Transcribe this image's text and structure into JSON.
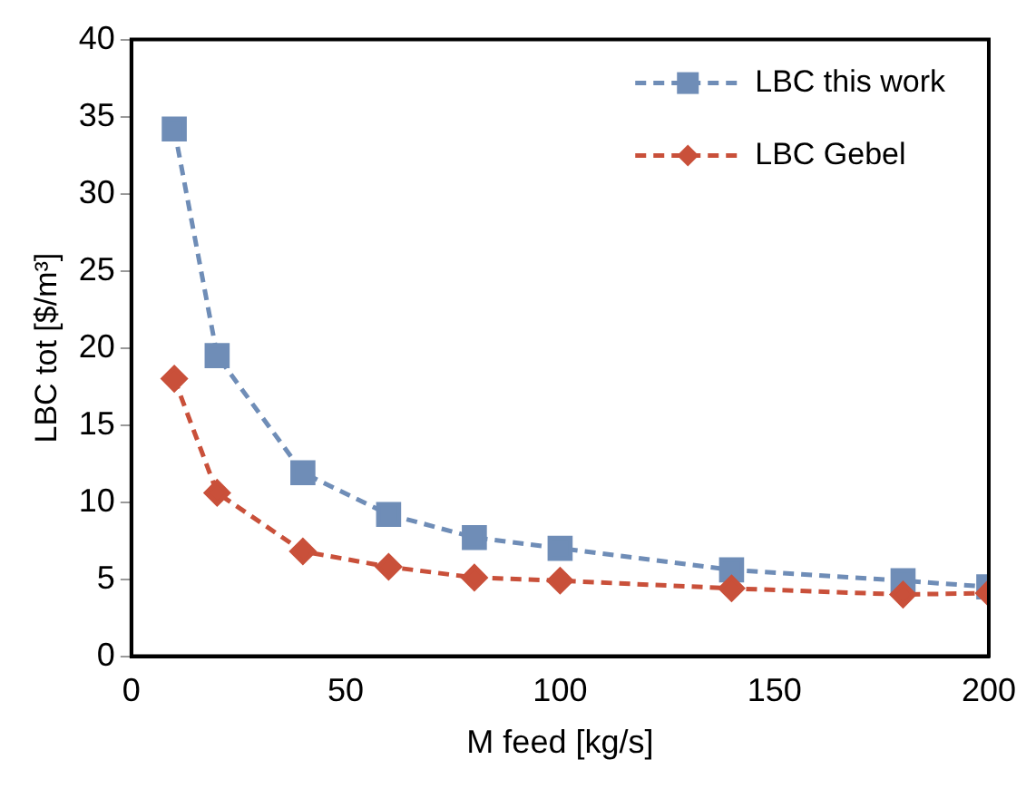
{
  "chart_data": {
    "type": "line",
    "xlabel": "M feed [kg/s]",
    "ylabel": "LBC tot [$/m³]",
    "x": [
      10,
      20,
      40,
      60,
      80,
      100,
      140,
      180,
      200
    ],
    "series": [
      {
        "name": "LBC this work",
        "color": "#6f8db7",
        "marker": "square",
        "values": [
          34.2,
          19.5,
          11.9,
          9.2,
          7.7,
          7.0,
          5.6,
          4.9,
          4.5
        ]
      },
      {
        "name": "LBC Gebel",
        "color": "#c9503a",
        "marker": "diamond",
        "values": [
          18.0,
          10.6,
          6.8,
          5.8,
          5.1,
          4.9,
          4.4,
          4.0,
          4.1
        ]
      }
    ],
    "xlim": [
      0,
      200
    ],
    "xticks": [
      0,
      50,
      100,
      150,
      200
    ],
    "ylim": [
      0,
      40
    ],
    "yticks": [
      0,
      5,
      10,
      15,
      20,
      25,
      30,
      35,
      40
    ],
    "grid": false,
    "legend": "top right",
    "line_style": "dashed"
  }
}
